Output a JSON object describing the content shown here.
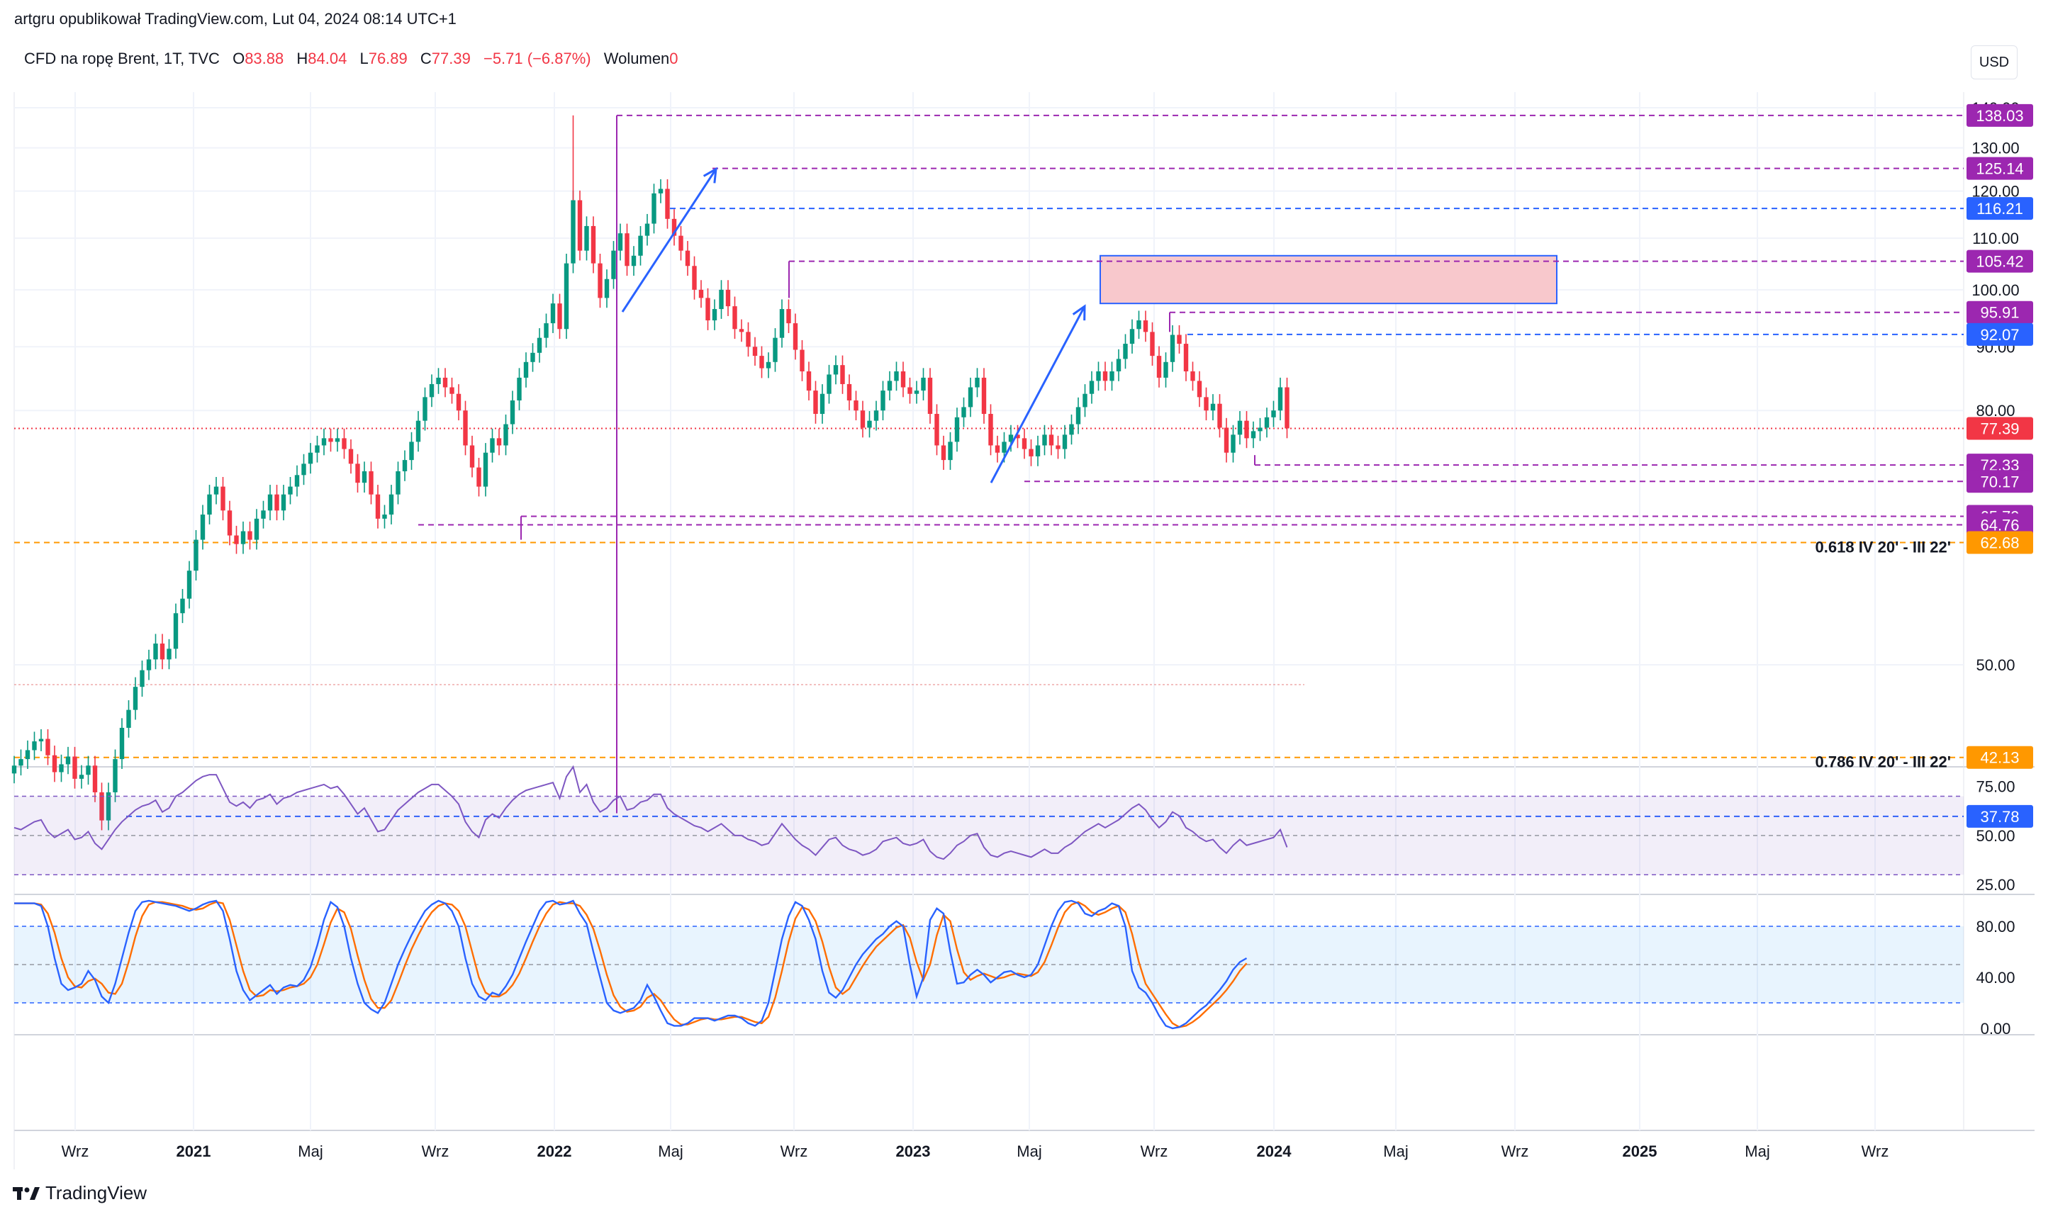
{
  "header": {
    "attribution": "artgru opublikował TradingView.com, Lut 04, 2024 08:14 UTC+1"
  },
  "legend": {
    "symbol": "CFD na ropę Brent, 1T, TVC",
    "o_label": "O",
    "o_value": "83.88",
    "h_label": "H",
    "h_value": "84.04",
    "l_label": "L",
    "l_value": "76.89",
    "c_label": "C",
    "c_value": "77.39",
    "change": "−5.71 (−6.87%)",
    "volume_label": "Wolumen",
    "volume_value": "0"
  },
  "currency_button": "USD",
  "brand": "TradingView",
  "colors": {
    "up": "#089981",
    "down": "#f23645",
    "purple": "#9c27b0",
    "blue": "#2962ff",
    "orange": "#ff9800",
    "rsi": "#7e57c2",
    "stoch_k": "#2962ff",
    "stoch_d": "#ff6d00"
  },
  "chart_data": [
    {
      "type": "candlestick",
      "title": "CFD na ropę Brent, 1T, TVC",
      "interval": "1T (weekly)",
      "x_tick_labels": [
        "Wrz",
        "2021",
        "Maj",
        "Wrz",
        "2022",
        "Maj",
        "Wrz",
        "2023",
        "Maj",
        "Wrz",
        "2024",
        "Maj",
        "Wrz",
        "2025",
        "Maj",
        "Wrz"
      ],
      "y_ticks": [
        "140.00",
        "130.00",
        "120.00",
        "110.00",
        "100.00",
        "90.00",
        "80.00",
        "50.00"
      ],
      "ylim": [
        35,
        141
      ],
      "scale": "log",
      "grid": true,
      "last_close": 77.39,
      "horizontal_levels": [
        {
          "value": 138.03,
          "label": "138.03",
          "color": "purple",
          "style": "dashed"
        },
        {
          "value": 125.14,
          "label": "125.14",
          "color": "purple",
          "style": "dashed"
        },
        {
          "value": 116.21,
          "label": "116.21",
          "color": "blue",
          "style": "dashed"
        },
        {
          "value": 105.42,
          "label": "105.42",
          "color": "purple",
          "style": "dashed"
        },
        {
          "value": 95.91,
          "label": "95.91",
          "color": "purple",
          "style": "dashed"
        },
        {
          "value": 92.07,
          "label": "92.07",
          "color": "blue",
          "style": "dashed"
        },
        {
          "value": 77.39,
          "label": "77.39",
          "color": "red",
          "style": "dotted"
        },
        {
          "value": 72.33,
          "label": "72.33",
          "color": "purple",
          "style": "dashed"
        },
        {
          "value": 70.17,
          "label": "70.17",
          "color": "purple",
          "style": "dashed"
        },
        {
          "value": 65.79,
          "label": "65.79",
          "color": "purple",
          "style": "dashed"
        },
        {
          "value": 64.76,
          "label": "64.76",
          "color": "purple",
          "style": "dashed"
        },
        {
          "value": 62.68,
          "label": "62.68",
          "color": "orange",
          "style": "dashed"
        },
        {
          "value": 42.13,
          "label": "42.13",
          "color": "orange",
          "style": "dashed"
        },
        {
          "value": 37.78,
          "label": "37.78",
          "color": "blue",
          "style": "dashed"
        }
      ],
      "annotations": [
        {
          "text": "0.618 IV 20' - III 22'",
          "value": 62.68
        },
        {
          "text": "0.786 IV 20' - III 22'",
          "value": 42.13
        }
      ],
      "zone": {
        "from": 97.5,
        "to": 106.5,
        "color": "#f8c8cc"
      },
      "arrows": [
        {
          "from_price": 96,
          "to_price": 125,
          "date_from": "2022-03",
          "date_to": "2022-06"
        },
        {
          "from_price": 70,
          "to_price": 97,
          "date_from": "2023-03",
          "date_to": "2023-07"
        }
      ],
      "closes": [
        41.5,
        42.0,
        42.7,
        43.4,
        43.6,
        42.3,
        41.0,
        41.6,
        42.2,
        40.5,
        40.8,
        41.5,
        39.5,
        37.5,
        39.5,
        42.0,
        44.5,
        46.0,
        48.0,
        49.5,
        50.5,
        52.0,
        50.5,
        51.5,
        55.0,
        56.5,
        59.5,
        63.0,
        66.0,
        68.5,
        69.5,
        66.5,
        63.5,
        62.5,
        64.0,
        63.0,
        65.5,
        66.5,
        68.5,
        66.5,
        68.5,
        69.5,
        71.0,
        72.5,
        74.0,
        75.0,
        76.0,
        75.5,
        76.0,
        74.5,
        72.5,
        70.0,
        71.5,
        68.5,
        65.5,
        66.0,
        68.5,
        71.5,
        73.0,
        75.5,
        78.5,
        82.0,
        84.0,
        85.0,
        83.5,
        82.5,
        80.0,
        75.0,
        72.0,
        69.5,
        74.0,
        76.0,
        75.0,
        78.0,
        81.5,
        85.0,
        87.5,
        89.0,
        91.5,
        94.0,
        97.5,
        93.0,
        105.0,
        118.0,
        107.5,
        112.5,
        105.0,
        98.5,
        102.0,
        107.5,
        111.0,
        104.5,
        106.5,
        110.5,
        113.0,
        119.5,
        120.5,
        114.0,
        110.5,
        107.5,
        104.5,
        100.0,
        98.5,
        94.5,
        96.5,
        100.0,
        97.0,
        93.0,
        92.5,
        90.0,
        88.5,
        86.5,
        87.5,
        91.5,
        96.5,
        94.0,
        89.5,
        86.0,
        83.0,
        79.5,
        82.5,
        85.5,
        87.0,
        84.0,
        81.5,
        80.0,
        77.5,
        78.5,
        80.0,
        83.0,
        84.5,
        86.0,
        83.5,
        82.5,
        83.0,
        85.0,
        79.5,
        75.0,
        73.0,
        75.5,
        79.0,
        80.5,
        83.5,
        85.0,
        79.5,
        75.0,
        74.0,
        75.5,
        76.5,
        76.0,
        74.5,
        73.5,
        75.0,
        76.5,
        75.0,
        74.5,
        76.5,
        78.0,
        80.5,
        82.5,
        84.5,
        86.0,
        84.5,
        86.0,
        88.0,
        90.5,
        93.0,
        94.5,
        92.5,
        88.5,
        85.0,
        87.5,
        92.0,
        90.5,
        86.0,
        84.5,
        82.0,
        80.0,
        81.0,
        77.5,
        74.0,
        76.5,
        78.5,
        76.0,
        77.0,
        77.5,
        79.0,
        80.0,
        83.5,
        77.4
      ]
    },
    {
      "type": "line",
      "title": "RSI",
      "y_ticks": [
        "75.00",
        "50.00",
        "25.00"
      ],
      "ylim": [
        20,
        85
      ],
      "bands": [
        70,
        50,
        30
      ],
      "values": [
        54,
        53,
        55,
        57,
        58,
        52,
        49,
        51,
        53,
        48,
        49,
        52,
        46,
        43,
        48,
        53,
        57,
        60,
        63,
        65,
        66,
        68,
        62,
        64,
        70,
        72,
        75,
        78,
        80,
        81,
        81,
        74,
        67,
        65,
        67,
        64,
        68,
        69,
        71,
        66,
        69,
        70,
        72,
        73,
        74,
        75,
        76,
        74,
        75,
        71,
        66,
        61,
        64,
        58,
        52,
        53,
        58,
        63,
        66,
        69,
        72,
        74,
        76,
        76,
        73,
        70,
        66,
        57,
        52,
        49,
        58,
        61,
        59,
        64,
        68,
        71,
        73,
        74,
        75,
        76,
        77,
        69,
        80,
        85,
        72,
        76,
        67,
        62,
        64,
        68,
        70,
        63,
        64,
        67,
        68,
        71,
        71,
        64,
        61,
        59,
        57,
        55,
        54,
        52,
        54,
        56,
        53,
        50,
        50,
        48,
        47,
        45,
        46,
        51,
        56,
        52,
        48,
        45,
        43,
        40,
        44,
        48,
        49,
        45,
        43,
        42,
        40,
        41,
        43,
        47,
        48,
        49,
        46,
        45,
        46,
        48,
        42,
        39,
        38,
        41,
        45,
        47,
        50,
        51,
        44,
        40,
        39,
        41,
        42,
        41,
        40,
        39,
        41,
        43,
        41,
        41,
        44,
        46,
        49,
        52,
        54,
        56,
        54,
        56,
        58,
        61,
        64,
        66,
        63,
        58,
        54,
        57,
        62,
        60,
        54,
        52,
        49,
        47,
        48,
        44,
        41,
        45,
        48,
        45,
        46,
        47,
        48,
        49,
        53,
        44
      ]
    },
    {
      "type": "line",
      "title": "Stochastic RSI",
      "y_ticks": [
        "80.00",
        "40.00",
        "0.00"
      ],
      "ylim": [
        -5,
        105
      ],
      "bands": [
        80,
        50,
        20
      ],
      "series": [
        {
          "name": "K",
          "values": [
            98,
            98,
            98,
            98,
            96,
            80,
            55,
            35,
            30,
            32,
            35,
            45,
            38,
            25,
            20,
            35,
            55,
            75,
            92,
            99,
            100,
            99,
            98,
            97,
            96,
            94,
            92,
            94,
            97,
            99,
            100,
            92,
            70,
            45,
            30,
            22,
            26,
            30,
            34,
            27,
            32,
            34,
            33,
            38,
            48,
            65,
            85,
            99,
            95,
            80,
            55,
            35,
            20,
            15,
            12,
            20,
            35,
            50,
            62,
            73,
            83,
            92,
            97,
            100,
            98,
            92,
            80,
            55,
            35,
            25,
            22,
            28,
            26,
            33,
            42,
            55,
            68,
            80,
            92,
            99,
            100,
            97,
            98,
            100,
            90,
            82,
            60,
            40,
            20,
            14,
            12,
            14,
            16,
            22,
            34,
            25,
            14,
            4,
            2,
            2,
            4,
            8,
            8,
            8,
            6,
            8,
            10,
            10,
            8,
            4,
            2,
            6,
            20,
            45,
            70,
            88,
            99,
            96,
            85,
            70,
            45,
            28,
            24,
            30,
            40,
            50,
            58,
            64,
            70,
            74,
            80,
            84,
            80,
            50,
            25,
            40,
            85,
            94,
            90,
            60,
            35,
            36,
            42,
            46,
            42,
            36,
            40,
            44,
            45,
            42,
            40,
            42,
            50,
            65,
            80,
            92,
            99,
            100,
            98,
            90,
            88,
            92,
            94,
            98,
            96,
            80,
            45,
            32,
            28,
            20,
            10,
            2,
            0,
            1,
            4,
            9,
            14,
            18,
            24,
            30,
            37,
            46,
            52,
            55
          ]
        },
        {
          "name": "D",
          "values": [
            98,
            98,
            98,
            98,
            97,
            90,
            75,
            55,
            40,
            33,
            32,
            37,
            39,
            35,
            28,
            27,
            35,
            52,
            72,
            88,
            97,
            99,
            99,
            98,
            97,
            96,
            94,
            93,
            94,
            97,
            99,
            98,
            85,
            65,
            45,
            30,
            25,
            26,
            30,
            29,
            30,
            32,
            33,
            35,
            40,
            50,
            66,
            83,
            94,
            91,
            78,
            57,
            38,
            23,
            16,
            16,
            22,
            35,
            49,
            62,
            73,
            83,
            91,
            96,
            98,
            97,
            92,
            80,
            60,
            40,
            28,
            25,
            25,
            28,
            34,
            43,
            55,
            68,
            80,
            90,
            97,
            99,
            98,
            98,
            96,
            89,
            78,
            61,
            42,
            26,
            17,
            13,
            14,
            17,
            24,
            27,
            22,
            14,
            7,
            3,
            3,
            5,
            7,
            8,
            7,
            7,
            8,
            9,
            9,
            7,
            5,
            4,
            9,
            24,
            45,
            68,
            86,
            95,
            93,
            84,
            68,
            48,
            32,
            27,
            31,
            40,
            49,
            57,
            64,
            69,
            74,
            79,
            81,
            71,
            52,
            38,
            50,
            73,
            89,
            84,
            62,
            44,
            38,
            41,
            43,
            41,
            39,
            40,
            42,
            43,
            42,
            41,
            44,
            52,
            65,
            79,
            91,
            97,
            99,
            96,
            91,
            89,
            91,
            94,
            96,
            91,
            74,
            52,
            35,
            27,
            19,
            11,
            4,
            1,
            2,
            5,
            9,
            14,
            19,
            24,
            30,
            37,
            45,
            51
          ]
        }
      ]
    }
  ]
}
